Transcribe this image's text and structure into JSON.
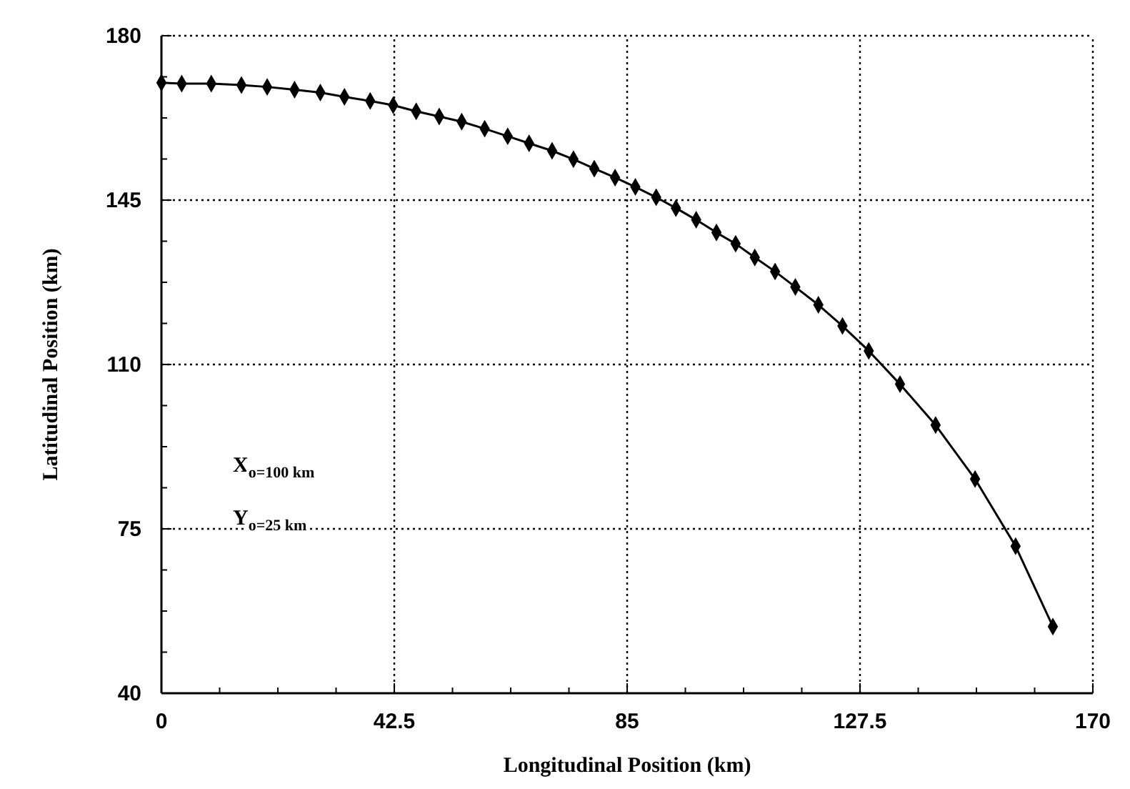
{
  "chart_data": {
    "type": "line",
    "xlabel": "Longitudinal Position (km)",
    "ylabel": "Latitudinal Position (km)",
    "x": [
      0,
      3.7,
      9.1,
      14.6,
      19.3,
      24.3,
      29,
      33.4,
      38.1,
      42.3,
      46.5,
      50.7,
      54.8,
      59,
      63.2,
      67.1,
      71.3,
      75.2,
      79,
      82.8,
      86.5,
      90.3,
      93.9,
      97.6,
      101.3,
      104.8,
      108.3,
      112.0,
      115.7,
      119.9,
      124.3,
      129.1,
      134.8,
      141.3,
      148.5,
      155.9,
      162.7
    ],
    "series": [
      {
        "color": "#000000",
        "values": [
          170,
          169.8,
          169.8,
          169.5,
          169.1,
          168.5,
          167.9,
          167.0,
          166.1,
          165.2,
          163.9,
          162.8,
          161.7,
          160.2,
          158.6,
          157.1,
          155.5,
          153.7,
          151.7,
          149.8,
          147.8,
          145.6,
          143.3,
          140.8,
          138.1,
          135.7,
          132.8,
          129.8,
          126.5,
          122.7,
          118.2,
          112.9,
          105.8,
          97.1,
          85.6,
          71.3,
          54.2
        ]
      }
    ],
    "marker": "diamond",
    "line_style": "solid",
    "grid": true,
    "xlim": [
      0,
      170
    ],
    "ylim": [
      40,
      180
    ],
    "xticks": [
      0,
      {
        "value": 10.625,
        "label": null
      },
      {
        "value": 21.25,
        "label": null
      },
      {
        "value": 31.875,
        "label": null
      },
      42.5,
      {
        "value": 53.125,
        "label": null
      },
      {
        "value": 63.75,
        "label": null
      },
      {
        "value": 74.375,
        "label": null
      },
      85,
      {
        "value": 95.625,
        "label": null
      },
      {
        "value": 106.25,
        "label": null
      },
      {
        "value": 116.875,
        "label": null
      },
      127.5,
      {
        "value": 138.125,
        "label": null
      },
      {
        "value": 148.75,
        "label": null
      },
      {
        "value": 159.375,
        "label": null
      },
      170
    ],
    "yticks": [
      40,
      {
        "value": 48.75,
        "label": null
      },
      {
        "value": 57.5,
        "label": null
      },
      {
        "value": 66.25,
        "label": null
      },
      75,
      {
        "value": 83.75,
        "label": null
      },
      {
        "value": 92.5,
        "label": null
      },
      {
        "value": 101.25,
        "label": null
      },
      110,
      {
        "value": 118.75,
        "label": null
      },
      {
        "value": 127.5,
        "label": null
      },
      {
        "value": 136.25,
        "label": null
      },
      145,
      {
        "value": 153.75,
        "label": null
      },
      {
        "value": 162.5,
        "label": null
      },
      {
        "value": 171.25,
        "label": null
      },
      180
    ],
    "annotations": [
      "X$_{o=100 km}$",
      "Y$_{o=25 km}$"
    ]
  }
}
